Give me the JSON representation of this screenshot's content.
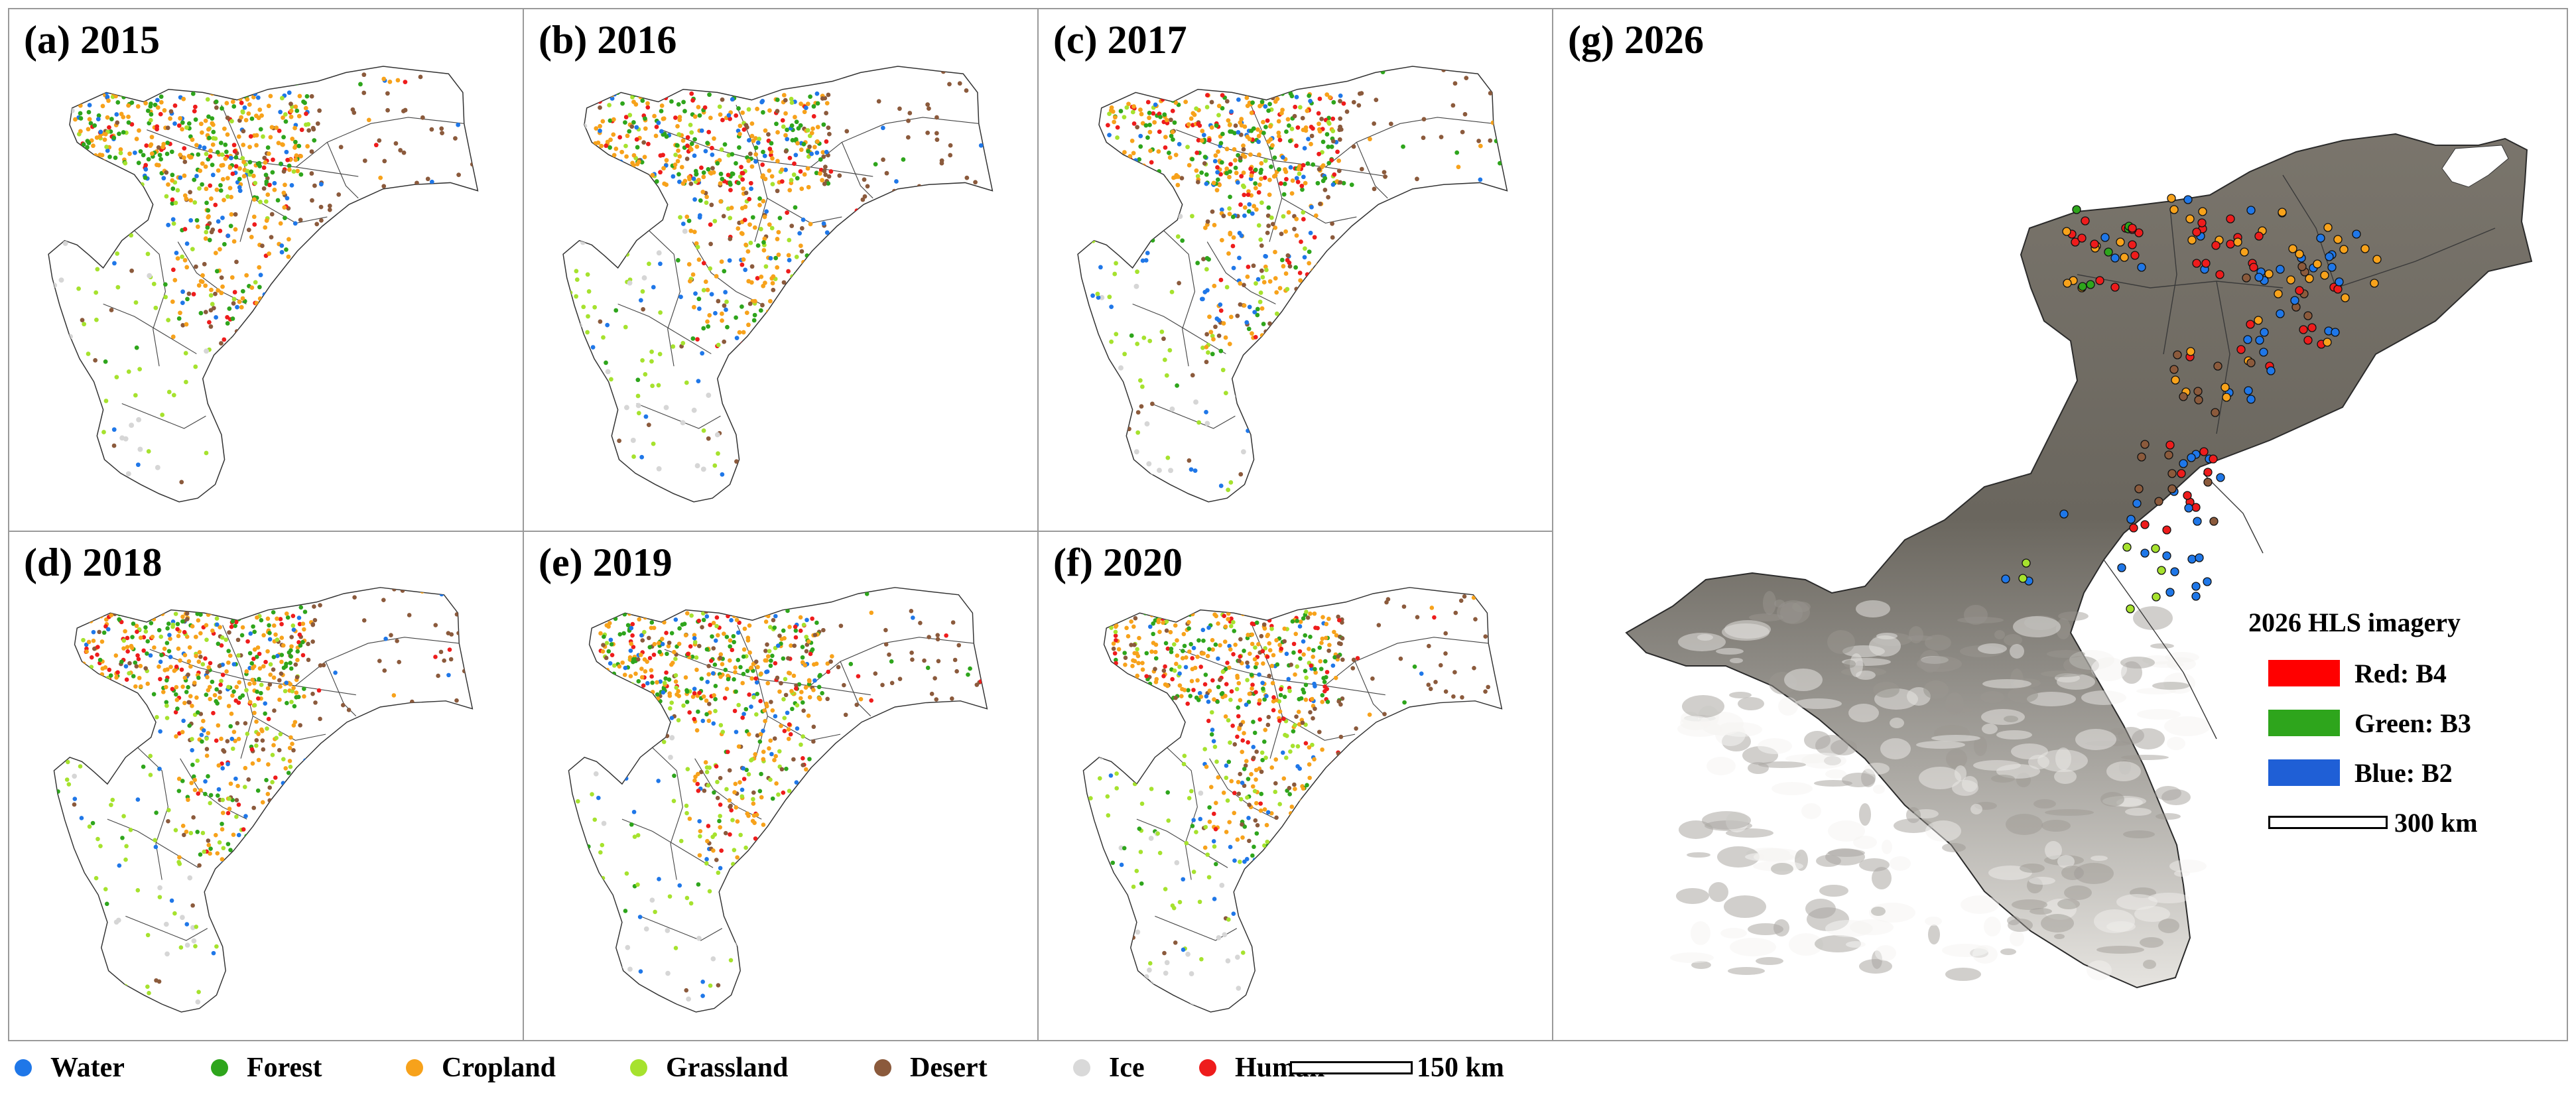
{
  "panels": [
    {
      "id": "a",
      "label": "(a) 2015"
    },
    {
      "id": "b",
      "label": "(b) 2016"
    },
    {
      "id": "c",
      "label": "(c) 2017"
    },
    {
      "id": "d",
      "label": "(d) 2018"
    },
    {
      "id": "e",
      "label": "(e) 2019"
    },
    {
      "id": "f",
      "label": "(f) 2020"
    }
  ],
  "panel_g": {
    "label": "(g) 2026"
  },
  "legend": {
    "items": [
      {
        "name": "Water",
        "color": "#1f77e8"
      },
      {
        "name": "Forest",
        "color": "#2ea51c"
      },
      {
        "name": "Cropland",
        "color": "#f7a21b"
      },
      {
        "name": "Grassland",
        "color": "#a6e22e"
      },
      {
        "name": "Desert",
        "color": "#8b5a3c"
      },
      {
        "name": "Ice",
        "color": "#d9d9d9"
      },
      {
        "name": "Human",
        "color": "#ee1c1c"
      }
    ],
    "scale_label": "150 km"
  },
  "imagery_legend": {
    "title": "2026 HLS imagery",
    "bands": [
      {
        "label": "Red: B4",
        "color": "#ff0000"
      },
      {
        "label": "Green: B3",
        "color": "#2ea51c"
      },
      {
        "label": "Blue: B2",
        "color": "#1f5fd6"
      }
    ],
    "scale_label": "300 km"
  },
  "colors": {
    "panel_border": "#9a9a9a",
    "region_outline": "#333333",
    "terrain_dark": "#6e6a62",
    "terrain_light": "#e8e6e2"
  }
}
